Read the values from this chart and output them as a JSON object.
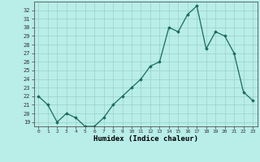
{
  "x": [
    0,
    1,
    2,
    3,
    4,
    5,
    6,
    7,
    8,
    9,
    10,
    11,
    12,
    13,
    14,
    15,
    16,
    17,
    18,
    19,
    20,
    21,
    22,
    23
  ],
  "y": [
    22,
    21,
    19,
    20,
    19.5,
    18.5,
    18.5,
    19.5,
    21,
    22,
    23,
    24,
    25.5,
    26,
    30,
    29.5,
    31.5,
    32.5,
    27.5,
    29.5,
    29,
    27,
    22.5,
    21.5
  ],
  "line_color": "#1a6b5a",
  "marker_color": "#1a6b5a",
  "bg_color": "#b8ede8",
  "grid_color": "#9acfca",
  "xlabel": "Humidex (Indice chaleur)",
  "xlim": [
    -0.5,
    23.5
  ],
  "ylim": [
    18.5,
    33.0
  ],
  "yticks": [
    19,
    20,
    21,
    22,
    23,
    24,
    25,
    26,
    27,
    28,
    29,
    30,
    31,
    32
  ],
  "xticks": [
    0,
    1,
    2,
    3,
    4,
    5,
    6,
    7,
    8,
    9,
    10,
    11,
    12,
    13,
    14,
    15,
    16,
    17,
    18,
    19,
    20,
    21,
    22,
    23
  ]
}
